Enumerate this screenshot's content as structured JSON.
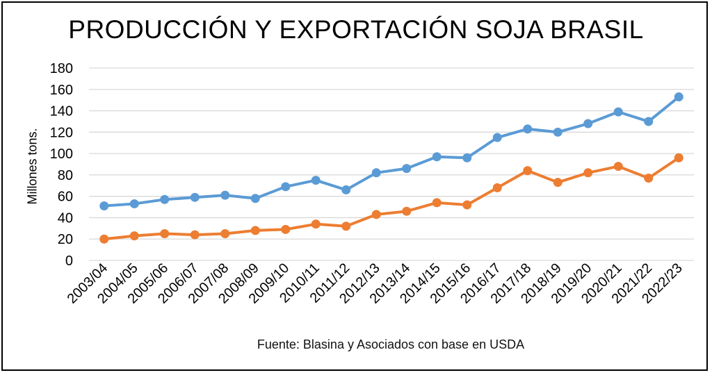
{
  "chart_data": {
    "type": "line",
    "title": "PRODUCCIÓN Y EXPORTACIÓN SOJA BRASIL",
    "ylabel": "Millones tons.",
    "xlabel": "",
    "source": "Fuente: Blasina y Asociados con base en USDA",
    "ylim": [
      0,
      180
    ],
    "yticks": [
      0,
      20,
      40,
      60,
      80,
      100,
      120,
      140,
      160,
      180
    ],
    "grid": true,
    "categories": [
      "2003/04",
      "2004/05",
      "2005/06",
      "2006/07",
      "2007/08",
      "2008/09",
      "2009/10",
      "2010/11",
      "2011/12",
      "2012/13",
      "2013/14",
      "2014/15",
      "2015/16",
      "2016/17",
      "2017/18",
      "2018/19",
      "2019/20",
      "2020/21",
      "2021/22",
      "2022/23"
    ],
    "series": [
      {
        "color": "#5b9bd5",
        "values": [
          51,
          53,
          57,
          59,
          61,
          58,
          69,
          75,
          66,
          82,
          86,
          97,
          96,
          115,
          123,
          120,
          128,
          139,
          130,
          153
        ]
      },
      {
        "color": "#ed7d31",
        "values": [
          20,
          23,
          25,
          24,
          25,
          28,
          29,
          34,
          32,
          43,
          46,
          54,
          52,
          68,
          84,
          73,
          82,
          88,
          77,
          96
        ]
      }
    ]
  }
}
